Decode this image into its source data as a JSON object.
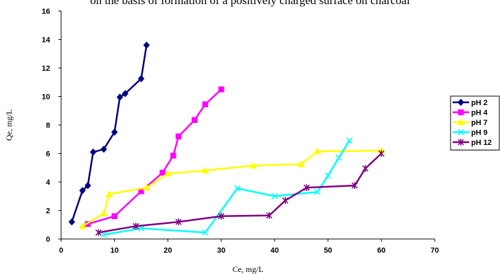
{
  "page": {
    "cut_text": "on the basis of formation of a positively charged surface on charcoal"
  },
  "chart_data": {
    "type": "line",
    "title": "",
    "xlabel": "Ce, mg/L",
    "ylabel": "Qe, mg/L",
    "xlim": [
      0,
      70
    ],
    "ylim": [
      0,
      16
    ],
    "xticks": [
      0,
      10,
      20,
      30,
      40,
      50,
      60,
      70
    ],
    "yticks": [
      0,
      2,
      4,
      6,
      8,
      10,
      12,
      14,
      16
    ],
    "grid": false,
    "legend_position": "right",
    "series": [
      {
        "name": "pH 2",
        "color": "#00007f",
        "marker": "diamond",
        "x": [
          2,
          4,
          5,
          6,
          8,
          10,
          11,
          12,
          15,
          16
        ],
        "y": [
          1.2,
          3.4,
          3.75,
          6.1,
          6.3,
          7.5,
          9.95,
          10.2,
          11.25,
          13.6
        ]
      },
      {
        "name": "pH 4",
        "color": "#ff00ff",
        "marker": "square",
        "x": [
          5,
          10,
          15,
          19,
          21,
          22,
          25,
          27,
          30
        ],
        "y": [
          1.05,
          1.6,
          3.35,
          4.65,
          5.85,
          7.2,
          8.35,
          9.45,
          10.5
        ]
      },
      {
        "name": "pH 7",
        "color": "#ffff00",
        "marker": "triangle",
        "x": [
          4,
          8,
          9,
          16,
          20,
          27,
          36,
          45,
          48,
          60
        ],
        "y": [
          0.9,
          1.8,
          3.15,
          3.6,
          4.6,
          4.8,
          5.15,
          5.25,
          6.15,
          6.2
        ]
      },
      {
        "name": "pH 9",
        "color": "#00ffff",
        "marker": "x",
        "x": [
          8,
          15,
          27,
          33,
          40,
          48,
          50,
          52,
          54
        ],
        "y": [
          0.3,
          0.75,
          0.45,
          3.55,
          3.0,
          3.3,
          4.45,
          5.7,
          6.9
        ]
      },
      {
        "name": "pH 12",
        "color": "#7f007f",
        "marker": "star",
        "x": [
          7,
          14,
          22,
          30,
          39,
          42,
          46,
          55,
          57,
          60
        ],
        "y": [
          0.45,
          0.9,
          1.2,
          1.6,
          1.65,
          2.7,
          3.6,
          3.75,
          4.95,
          6.0
        ]
      }
    ]
  }
}
